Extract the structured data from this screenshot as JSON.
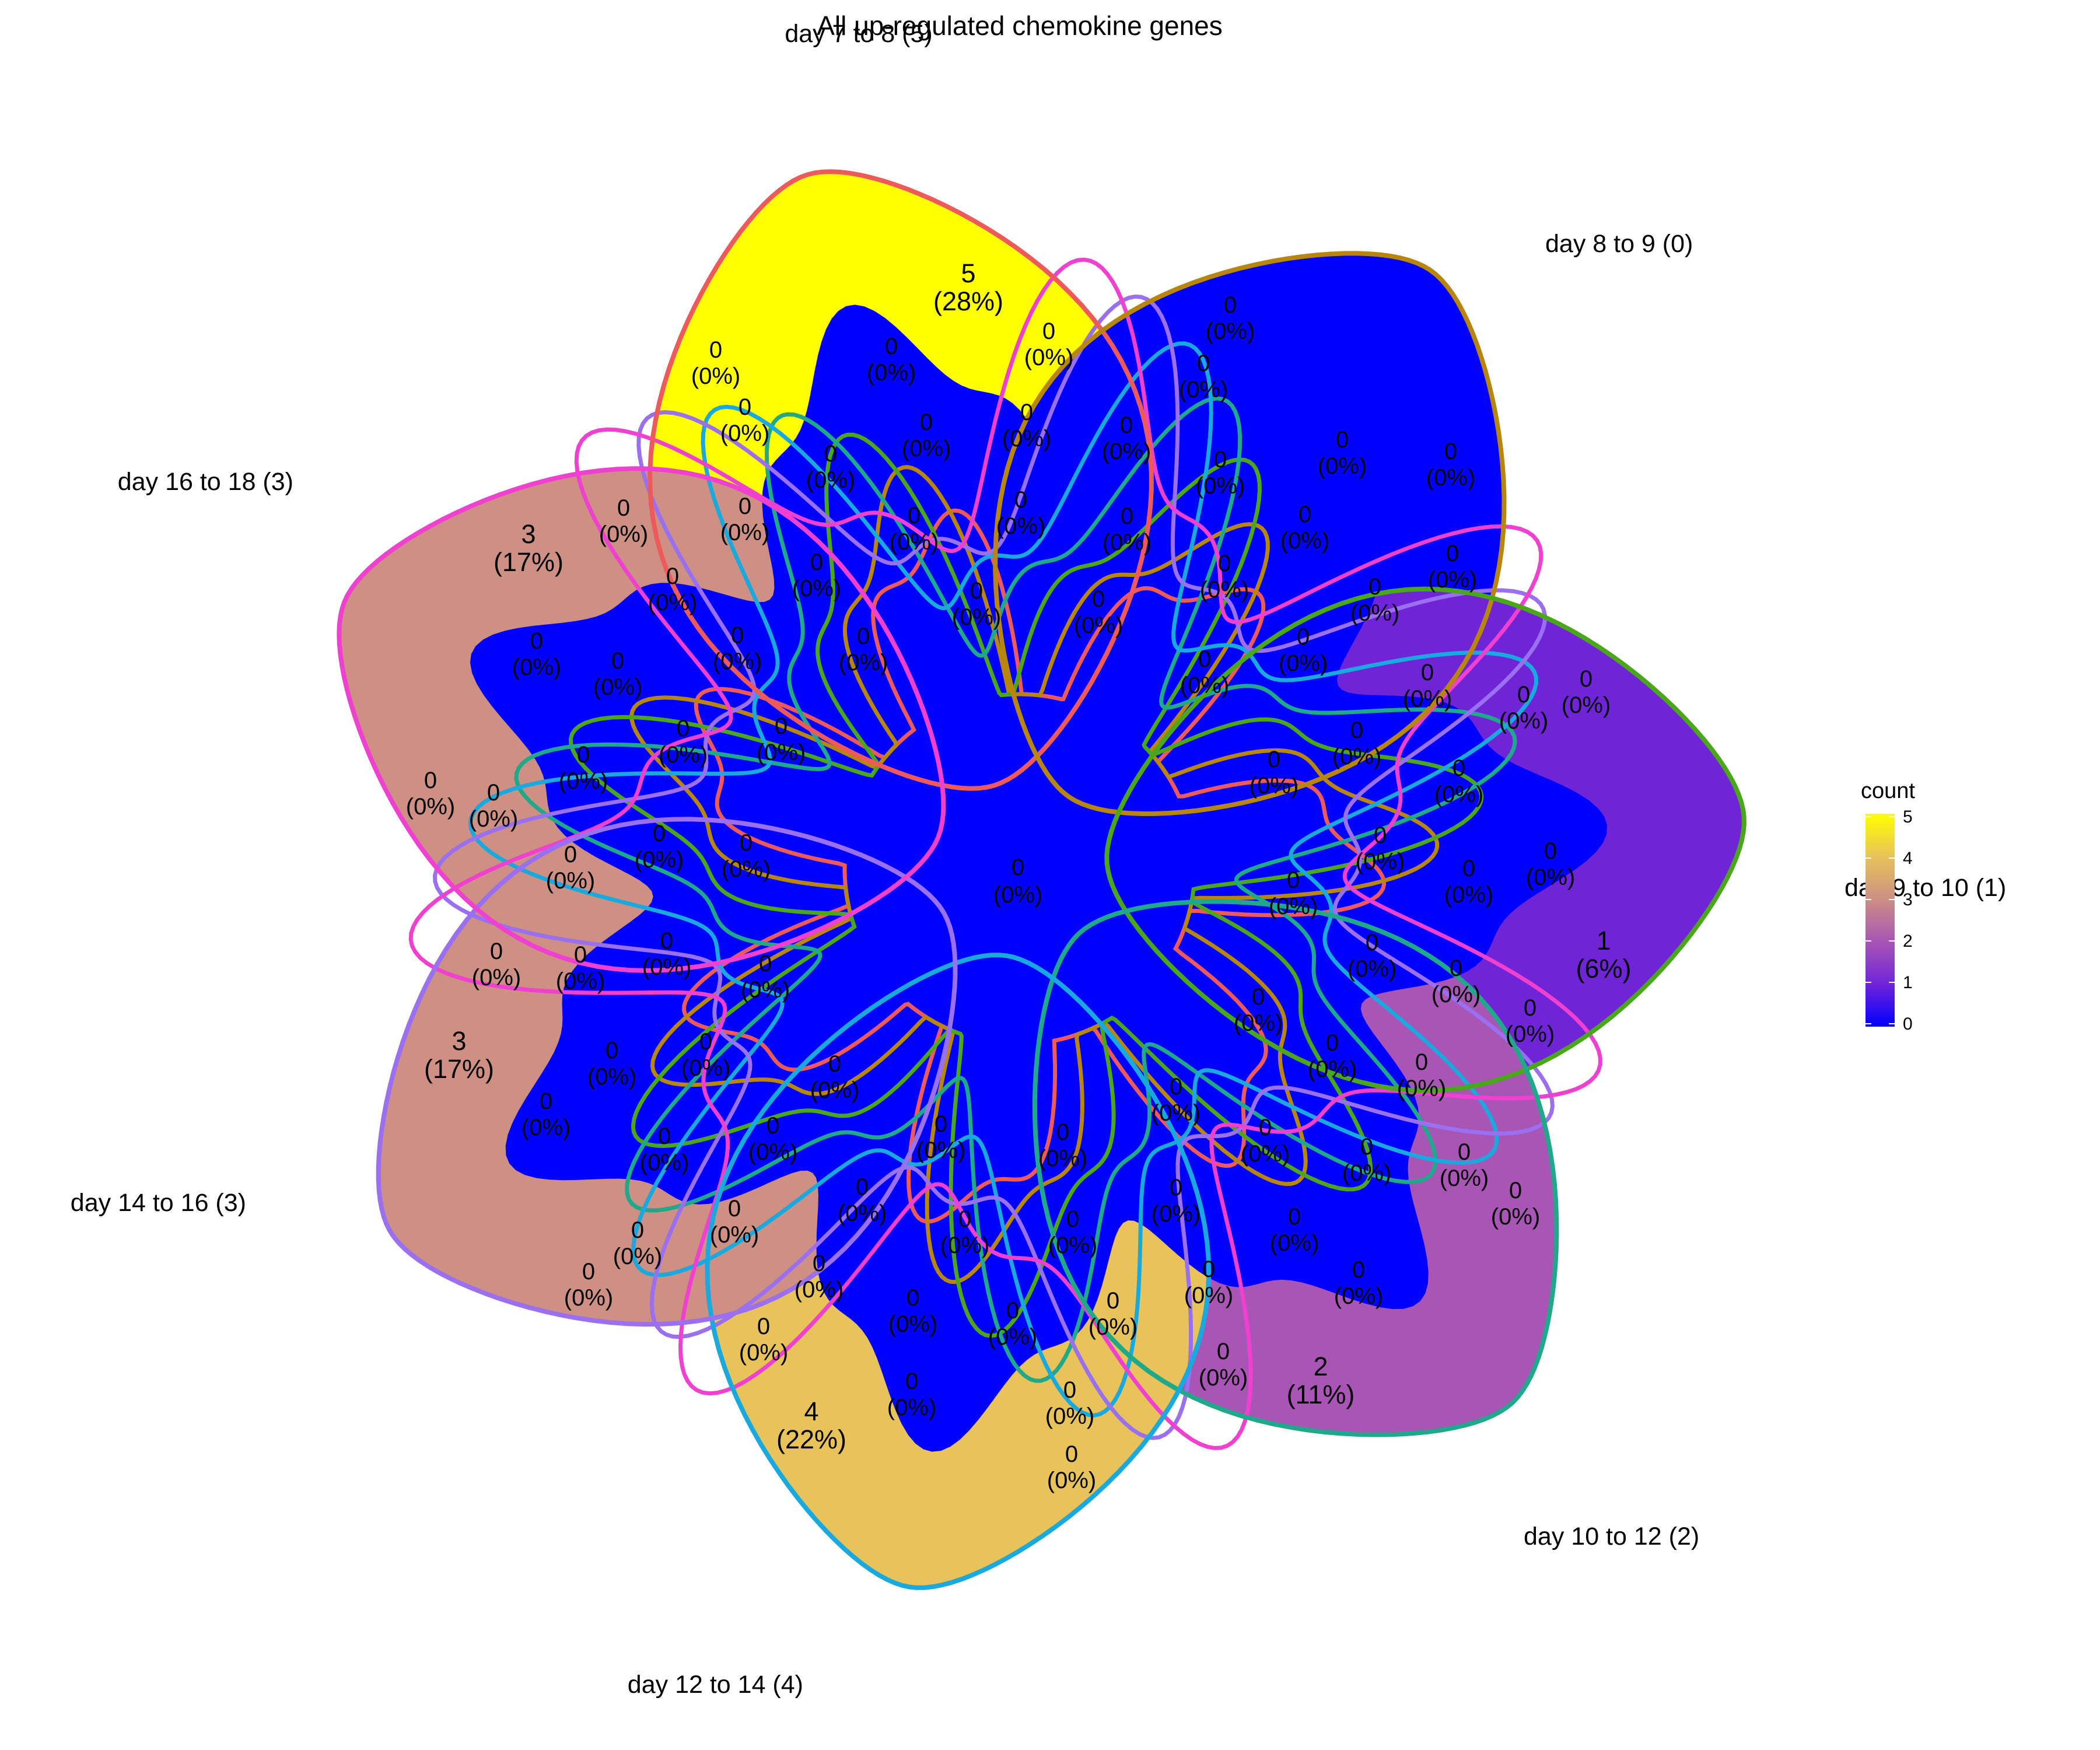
{
  "title": "All up-regulated chemokine genes",
  "sets": [
    {
      "label": "day 7 to 8 (5)",
      "count": "5",
      "percent": "(28%)",
      "fill": "#ffff00",
      "stroke": "#ee5a5a"
    },
    {
      "label": "day 8 to 9 (0)",
      "count": "",
      "percent": "",
      "fill": "#0000ff",
      "stroke": "#b8860b"
    },
    {
      "label": "day 9 to 10 (1)",
      "count": "1",
      "percent": "(6%)",
      "fill": "#7024d8",
      "stroke": "#4aa71a"
    },
    {
      "label": "day 10 to 12 (2)",
      "count": "2",
      "percent": "(11%)",
      "fill": "#a855b5",
      "stroke": "#1fa88a"
    },
    {
      "label": "day 12 to 14 (4)",
      "count": "4",
      "percent": "(22%)",
      "fill": "#e8c35a",
      "stroke": "#1aa9df"
    },
    {
      "label": "day 14 to 16 (3)",
      "count": "3",
      "percent": "(17%)",
      "fill": "#cd9083",
      "stroke": "#9a70f0"
    },
    {
      "label": "day 16 to 18 (3)",
      "count": "3",
      "percent": "(17%)",
      "fill": "#cd9083",
      "stroke": "#f040d0"
    }
  ],
  "center": {
    "count": "0",
    "percent": "(0%)"
  },
  "zero_region": {
    "count": "0",
    "percent": "(0%)",
    "fill": "#0000ff"
  },
  "legend": {
    "title": "count",
    "ticks": [
      "5",
      "4",
      "3",
      "2",
      "1",
      "0"
    ],
    "gradient": [
      "#ffff00",
      "#e8c35a",
      "#cd9083",
      "#a855b5",
      "#7024d8",
      "#0000ff"
    ]
  }
}
